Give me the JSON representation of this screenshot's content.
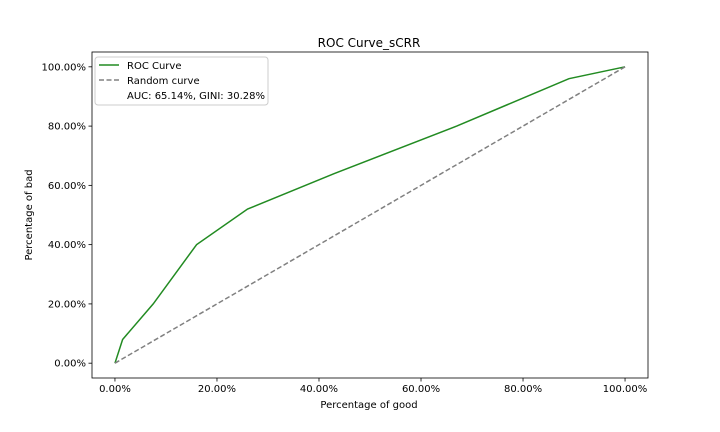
{
  "chart_data": {
    "type": "line",
    "title": "ROC Curve_sCRR",
    "xlabel": "Percentage of good",
    "ylabel": "Percentage of bad",
    "xlim": [
      -0.045,
      1.045
    ],
    "ylim": [
      -0.05,
      1.05
    ],
    "x_ticks": [
      0,
      0.2,
      0.4,
      0.6,
      0.8,
      1.0
    ],
    "x_tick_labels": [
      "0.00%",
      "20.00%",
      "40.00%",
      "60.00%",
      "80.00%",
      "100.00%"
    ],
    "y_ticks": [
      0,
      0.2,
      0.4,
      0.6,
      0.8,
      1.0
    ],
    "y_tick_labels": [
      "0.00%",
      "20.00%",
      "40.00%",
      "60.00%",
      "80.00%",
      "100.00%"
    ],
    "grid": false,
    "legend_position": "top-left",
    "legend_note": "AUC: 65.14%, GINI: 30.28%",
    "series": [
      {
        "name": "ROC Curve",
        "color": "#228b22",
        "style": "solid",
        "x": [
          0.0,
          0.015,
          0.075,
          0.16,
          0.26,
          0.43,
          0.67,
          0.89,
          1.0
        ],
        "y": [
          0.0,
          0.08,
          0.2,
          0.4,
          0.52,
          0.64,
          0.8,
          0.96,
          1.0
        ]
      },
      {
        "name": "Random curve",
        "color": "#808080",
        "style": "dashed",
        "x": [
          0.0,
          1.0
        ],
        "y": [
          0.0,
          1.0
        ]
      }
    ]
  }
}
